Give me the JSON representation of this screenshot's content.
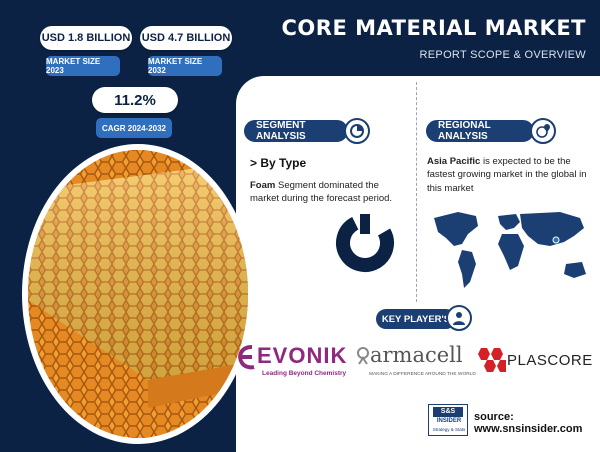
{
  "stats": {
    "market_size_2023_value": "USD 1.8 BILLION",
    "market_size_2023_label": "MARKET SIZE 2023",
    "market_size_2032_value": "USD 4.7 BILLION",
    "market_size_2032_label": "MARKET SIZE 2032",
    "cagr_value": "11.2%",
    "cagr_label": "CAGR 2024-2032"
  },
  "header": {
    "title": "CORE MATERIAL MARKET",
    "subtitle": "REPORT SCOPE & OVERVIEW"
  },
  "segment": {
    "heading": "SEGMENT ANALYSIS",
    "sub_heading": "> By Type",
    "text_bold": "Foam",
    "text_rest": " Segment dominated the market during the forecast period."
  },
  "regional": {
    "heading": "REGIONAL ANALYSIS",
    "text_bold": "Asia Pacific",
    "text_rest": " is expected to be the fastest growing market in the global in this market"
  },
  "key_players": {
    "heading": "KEY PLAYER'S",
    "evonik": "EVONIK",
    "evonik_tagline": "Leading Beyond Chemistry",
    "armacell": "armacell",
    "armacell_tagline": "MAKING A DIFFERENCE AROUND THE WORLD",
    "plascore": "PLASCORE"
  },
  "footer": {
    "logo_letters": "S&S",
    "logo_word": "INSIDER",
    "logo_tagline": "Strategy & Stats",
    "source": "source: www.snsinsider.com"
  },
  "colors": {
    "navy": "#0c2244",
    "accent_blue": "#2f6fbe",
    "heading_blue": "#1b3f72",
    "evonik_purple": "#8d2a7f",
    "plascore_red": "#d42027",
    "honeycomb_orange": "#f0a030"
  },
  "icons": {
    "segment": "pie-chart-icon",
    "regional": "globe-pin-icon",
    "key_players": "person-icon"
  }
}
